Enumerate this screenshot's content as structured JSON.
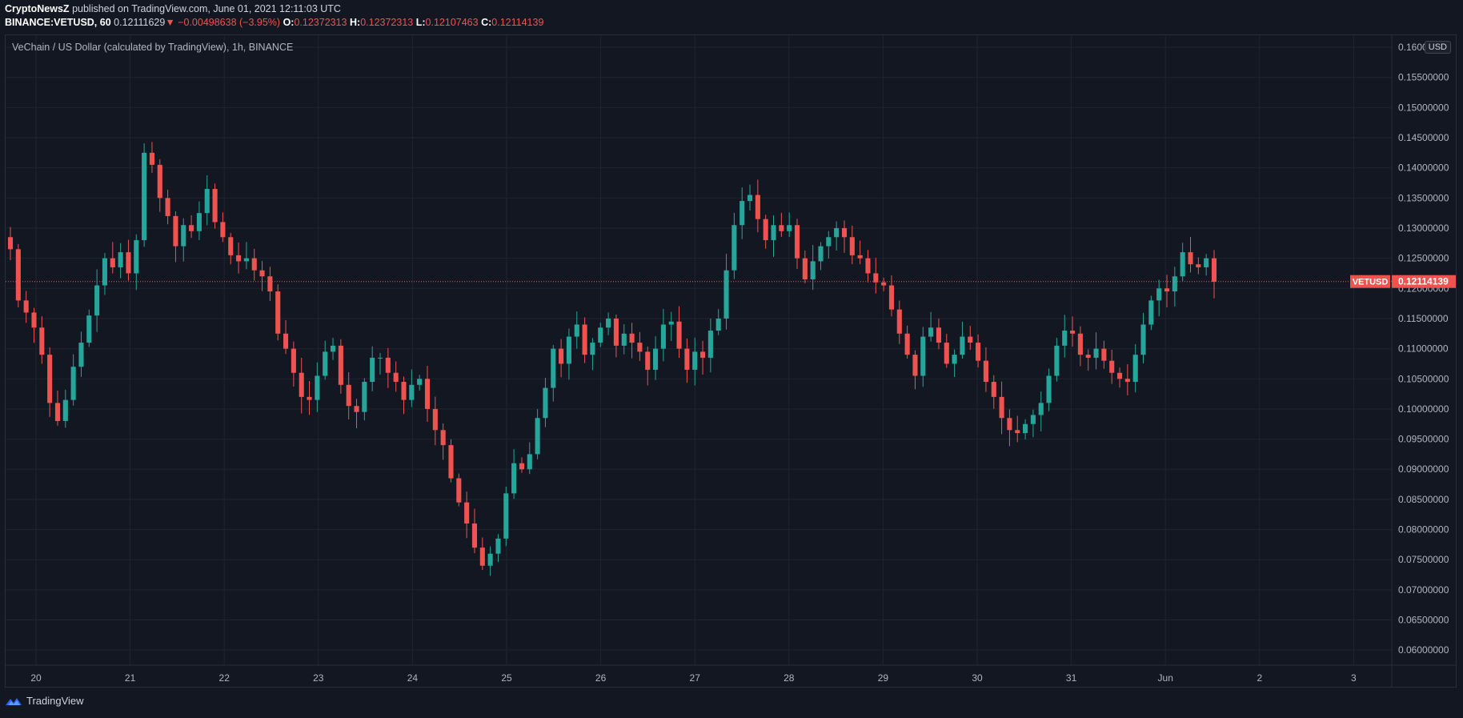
{
  "header": {
    "publisher": "CryptoNewsZ",
    "published_text": "published on TradingView.com, June 01, 2021 12:11:03 UTC",
    "symbol": "BINANCE:VETUSD, 60",
    "last": "0.12111629",
    "arrow": "▼",
    "change": "−0.00498638 (−3.95%)",
    "o_label": "O:",
    "o_value": "0.12372313",
    "h_label": "H:",
    "h_value": "0.12372313",
    "l_label": "L:",
    "l_value": "0.12107463",
    "c_label": "C:",
    "c_value": "0.12114139"
  },
  "chart_title": "VeChain / US Dollar (calculated by TradingView), 1h, BINANCE",
  "currency_badge": "USD",
  "footer": {
    "brand": "TradingView"
  },
  "colors": {
    "background": "#131722",
    "up": "#26a69a",
    "down": "#ef5350",
    "grid": "#1f2430",
    "price_line": "#ef5350"
  },
  "chart_data": {
    "type": "candlestick",
    "title": "VeChain / US Dollar (calculated by TradingView), 1h, BINANCE",
    "interval": "1h",
    "ylim": [
      0.0575,
      0.162
    ],
    "y_ticks": [
      "0.06000000",
      "0.06500000",
      "0.07000000",
      "0.07500000",
      "0.08000000",
      "0.08500000",
      "0.09000000",
      "0.09500000",
      "0.10000000",
      "0.10500000",
      "0.11000000",
      "0.11500000",
      "0.12000000",
      "0.12500000",
      "0.13000000",
      "0.13500000",
      "0.14000000",
      "0.14500000",
      "0.15000000",
      "0.15500000",
      "0.16000000"
    ],
    "x_ticks": [
      "20",
      "21",
      "22",
      "23",
      "24",
      "25",
      "26",
      "27",
      "28",
      "29",
      "30",
      "31",
      "Jun",
      "2",
      "3"
    ],
    "last_price": 0.12114139,
    "last_price_label": "0.12114139",
    "price_tag_symbol": "VETUSD",
    "grid": true,
    "candle_closes": [
      0.1265,
      0.118,
      0.116,
      0.1135,
      0.109,
      0.101,
      0.098,
      0.1015,
      0.107,
      0.111,
      0.1155,
      0.1205,
      0.125,
      0.1235,
      0.126,
      0.1225,
      0.128,
      0.1425,
      0.1405,
      0.135,
      0.132,
      0.127,
      0.1305,
      0.1295,
      0.1325,
      0.1365,
      0.131,
      0.1285,
      0.1255,
      0.1245,
      0.125,
      0.123,
      0.122,
      0.1195,
      0.1125,
      0.11,
      0.106,
      0.102,
      0.1015,
      0.1055,
      0.1095,
      0.1105,
      0.104,
      0.1005,
      0.0995,
      0.1045,
      0.1085,
      0.1085,
      0.106,
      0.1045,
      0.1015,
      0.104,
      0.105,
      0.1,
      0.0965,
      0.094,
      0.0885,
      0.0845,
      0.081,
      0.077,
      0.074,
      0.076,
      0.0785,
      0.086,
      0.091,
      0.09,
      0.0925,
      0.0985,
      0.1035,
      0.11,
      0.1075,
      0.112,
      0.114,
      0.109,
      0.111,
      0.1135,
      0.115,
      0.1105,
      0.1125,
      0.111,
      0.1095,
      0.1065,
      0.11,
      0.114,
      0.1145,
      0.11,
      0.1065,
      0.1095,
      0.1085,
      0.113,
      0.115,
      0.123,
      0.1305,
      0.1345,
      0.1355,
      0.1315,
      0.128,
      0.1305,
      0.1295,
      0.1305,
      0.125,
      0.1215,
      0.1245,
      0.127,
      0.1285,
      0.13,
      0.1285,
      0.1255,
      0.125,
      0.1225,
      0.121,
      0.1205,
      0.1165,
      0.1125,
      0.109,
      0.1055,
      0.112,
      0.1135,
      0.111,
      0.1075,
      0.109,
      0.112,
      0.111,
      0.108,
      0.1045,
      0.102,
      0.0985,
      0.0965,
      0.096,
      0.0975,
      0.099,
      0.101,
      0.1055,
      0.1105,
      0.113,
      0.1125,
      0.109,
      0.1085,
      0.11,
      0.108,
      0.106,
      0.105,
      0.1045,
      0.109,
      0.114,
      0.118,
      0.12,
      0.1195,
      0.122,
      0.126,
      0.124,
      0.1235,
      0.125,
      0.1211
    ]
  }
}
